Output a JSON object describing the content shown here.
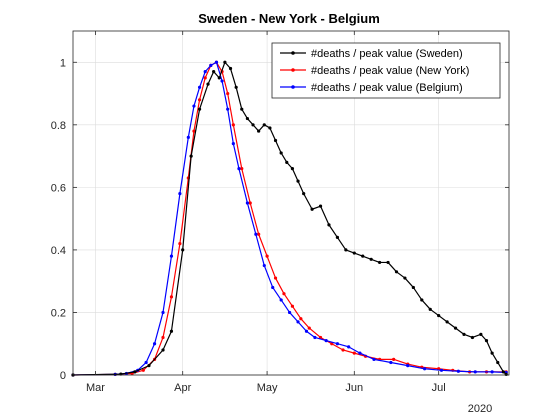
{
  "chart_data": {
    "type": "line",
    "title": "Sweden - New York - Belgium",
    "xlabel": "",
    "ylabel": "",
    "year_label": "2020",
    "xlim": [
      "2020-02-22",
      "2020-07-26"
    ],
    "ylim": [
      0,
      1.1
    ],
    "yticks": [
      0,
      0.2,
      0.4,
      0.6,
      0.8,
      1
    ],
    "ytick_labels": [
      "0",
      "0.2",
      "0.4",
      "0.6",
      "0.8",
      "1"
    ],
    "xticks": [
      "2020-03-01",
      "2020-04-01",
      "2020-05-01",
      "2020-06-01",
      "2020-07-01"
    ],
    "xtick_labels": [
      "Mar",
      "Apr",
      "May",
      "Jun",
      "Jul"
    ],
    "grid": true,
    "legend_position": "top-right",
    "series": [
      {
        "name": "#deaths / peak value (Sweden)",
        "color": "#000000",
        "x": [
          "2020-02-22",
          "2020-03-10",
          "2020-03-15",
          "2020-03-20",
          "2020-03-25",
          "2020-03-28",
          "2020-04-01",
          "2020-04-04",
          "2020-04-07",
          "2020-04-10",
          "2020-04-12",
          "2020-04-14",
          "2020-04-16",
          "2020-04-18",
          "2020-04-20",
          "2020-04-22",
          "2020-04-24",
          "2020-04-26",
          "2020-04-28",
          "2020-04-30",
          "2020-05-02",
          "2020-05-04",
          "2020-05-06",
          "2020-05-08",
          "2020-05-10",
          "2020-05-12",
          "2020-05-14",
          "2020-05-17",
          "2020-05-20",
          "2020-05-23",
          "2020-05-26",
          "2020-05-29",
          "2020-06-01",
          "2020-06-04",
          "2020-06-07",
          "2020-06-10",
          "2020-06-13",
          "2020-06-16",
          "2020-06-19",
          "2020-06-22",
          "2020-06-25",
          "2020-06-28",
          "2020-07-01",
          "2020-07-04",
          "2020-07-07",
          "2020-07-10",
          "2020-07-13",
          "2020-07-16",
          "2020-07-18",
          "2020-07-20",
          "2020-07-22",
          "2020-07-24",
          "2020-07-25"
        ],
        "values": [
          0,
          0.003,
          0.01,
          0.03,
          0.08,
          0.14,
          0.4,
          0.7,
          0.85,
          0.93,
          0.97,
          0.95,
          1.0,
          0.98,
          0.92,
          0.85,
          0.82,
          0.8,
          0.78,
          0.8,
          0.79,
          0.75,
          0.71,
          0.68,
          0.66,
          0.62,
          0.58,
          0.53,
          0.54,
          0.48,
          0.44,
          0.4,
          0.39,
          0.38,
          0.37,
          0.36,
          0.36,
          0.33,
          0.31,
          0.28,
          0.24,
          0.21,
          0.19,
          0.17,
          0.15,
          0.13,
          0.12,
          0.13,
          0.11,
          0.07,
          0.04,
          0.01,
          0.002
        ]
      },
      {
        "name": "#deaths / peak value (New York)",
        "color": "#ff0000",
        "x": [
          "2020-02-22",
          "2020-03-08",
          "2020-03-14",
          "2020-03-18",
          "2020-03-22",
          "2020-03-25",
          "2020-03-28",
          "2020-03-31",
          "2020-04-03",
          "2020-04-05",
          "2020-04-07",
          "2020-04-09",
          "2020-04-11",
          "2020-04-13",
          "2020-04-15",
          "2020-04-17",
          "2020-04-19",
          "2020-04-22",
          "2020-04-25",
          "2020-04-28",
          "2020-05-01",
          "2020-05-04",
          "2020-05-07",
          "2020-05-10",
          "2020-05-13",
          "2020-05-16",
          "2020-05-20",
          "2020-05-24",
          "2020-05-28",
          "2020-06-01",
          "2020-06-05",
          "2020-06-10",
          "2020-06-15",
          "2020-06-20",
          "2020-06-25",
          "2020-07-01",
          "2020-07-06",
          "2020-07-12",
          "2020-07-18",
          "2020-07-25"
        ],
        "values": [
          0,
          0.002,
          0.005,
          0.015,
          0.05,
          0.12,
          0.25,
          0.42,
          0.63,
          0.78,
          0.88,
          0.95,
          0.99,
          1.0,
          0.97,
          0.9,
          0.8,
          0.66,
          0.55,
          0.45,
          0.38,
          0.31,
          0.26,
          0.22,
          0.18,
          0.15,
          0.12,
          0.1,
          0.08,
          0.07,
          0.06,
          0.05,
          0.05,
          0.035,
          0.025,
          0.02,
          0.015,
          0.01,
          0.01,
          0.01
        ]
      },
      {
        "name": "#deaths / peak value (Belgium)",
        "color": "#0000ff",
        "x": [
          "2020-02-22",
          "2020-03-08",
          "2020-03-12",
          "2020-03-16",
          "2020-03-19",
          "2020-03-22",
          "2020-03-25",
          "2020-03-28",
          "2020-03-31",
          "2020-04-03",
          "2020-04-05",
          "2020-04-07",
          "2020-04-09",
          "2020-04-11",
          "2020-04-13",
          "2020-04-15",
          "2020-04-17",
          "2020-04-19",
          "2020-04-21",
          "2020-04-24",
          "2020-04-27",
          "2020-04-30",
          "2020-05-03",
          "2020-05-06",
          "2020-05-09",
          "2020-05-12",
          "2020-05-15",
          "2020-05-18",
          "2020-05-22",
          "2020-05-26",
          "2020-05-30",
          "2020-06-03",
          "2020-06-08",
          "2020-06-14",
          "2020-06-20",
          "2020-06-26",
          "2020-07-02",
          "2020-07-08",
          "2020-07-14",
          "2020-07-20",
          "2020-07-25"
        ],
        "values": [
          0,
          0.002,
          0.005,
          0.015,
          0.04,
          0.1,
          0.2,
          0.38,
          0.58,
          0.76,
          0.86,
          0.92,
          0.97,
          0.99,
          1.0,
          0.94,
          0.85,
          0.74,
          0.66,
          0.55,
          0.45,
          0.35,
          0.28,
          0.24,
          0.2,
          0.17,
          0.14,
          0.12,
          0.11,
          0.1,
          0.09,
          0.07,
          0.05,
          0.04,
          0.03,
          0.02,
          0.015,
          0.012,
          0.01,
          0.01,
          0.008
        ]
      }
    ]
  }
}
